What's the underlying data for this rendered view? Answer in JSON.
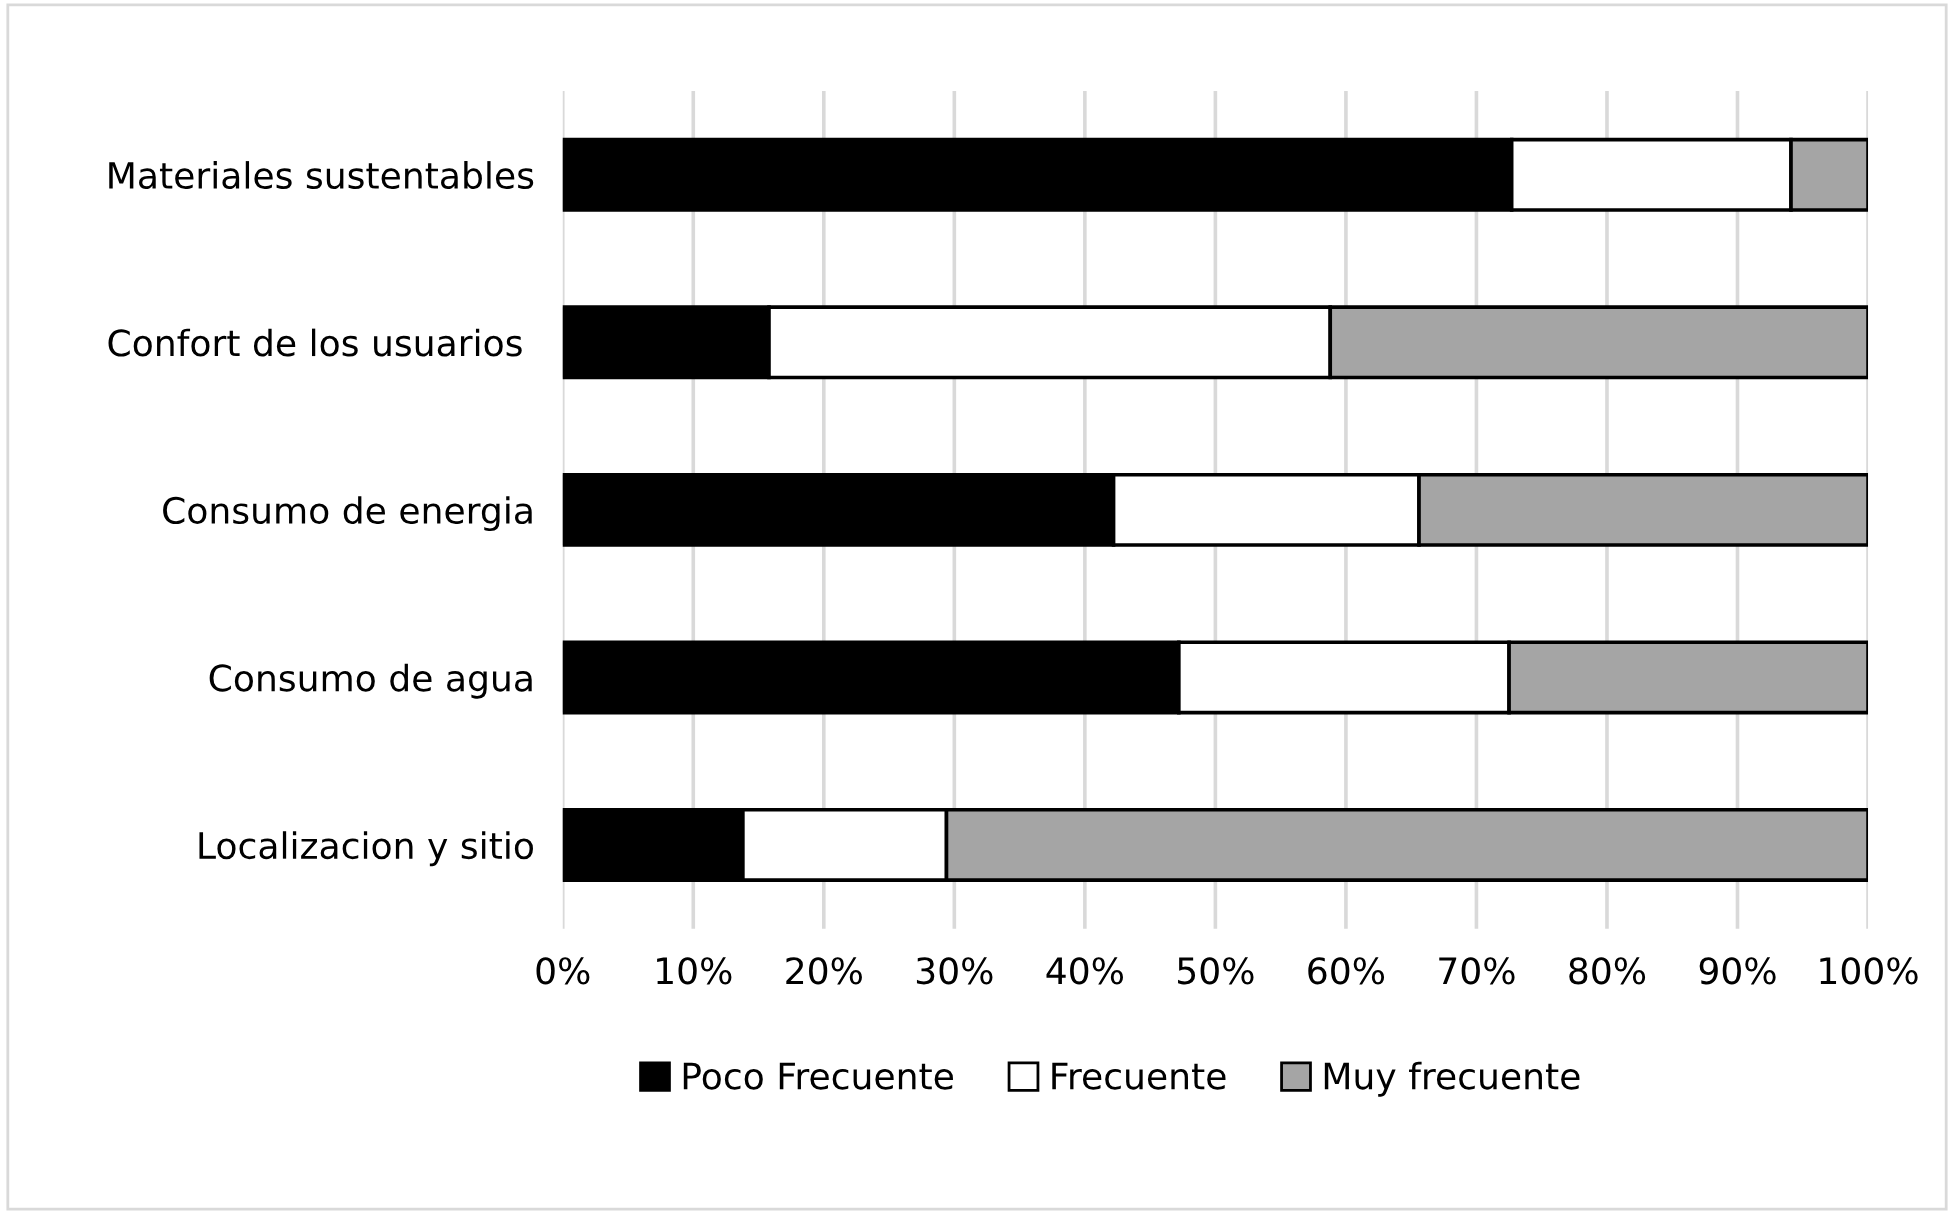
{
  "chart_data": {
    "type": "bar",
    "orientation": "horizontal",
    "stacked": true,
    "categories": [
      "Materiales sustentables",
      "Confort de los usuarios ",
      "Consumo de energia",
      "Consumo de agua",
      "Localizacion y sitio"
    ],
    "series": [
      {
        "name": "Poco Frecuente",
        "color": "#000000",
        "values": [
          72.7,
          15.8,
          42.2,
          47.2,
          13.8
        ]
      },
      {
        "name": "Frecuente",
        "color": "#ffffff",
        "values": [
          21.4,
          43.0,
          23.4,
          25.3,
          15.6
        ]
      },
      {
        "name": "Muy frecuente",
        "color": "#a5a5a5",
        "values": [
          5.9,
          41.2,
          34.4,
          27.5,
          70.6
        ]
      }
    ],
    "xlim": [
      0,
      100
    ],
    "xticks": [
      {
        "value": 0,
        "label": "0%"
      },
      {
        "value": 10,
        "label": "10%"
      },
      {
        "value": 20,
        "label": "20%"
      },
      {
        "value": 30,
        "label": "30%"
      },
      {
        "value": 40,
        "label": "40%"
      },
      {
        "value": 50,
        "label": "50%"
      },
      {
        "value": 60,
        "label": "60%"
      },
      {
        "value": 70,
        "label": "70%"
      },
      {
        "value": 80,
        "label": "80%"
      },
      {
        "value": 90,
        "label": "90%"
      },
      {
        "value": 100,
        "label": "100%"
      }
    ],
    "grid": "x",
    "legend": "bottom"
  }
}
